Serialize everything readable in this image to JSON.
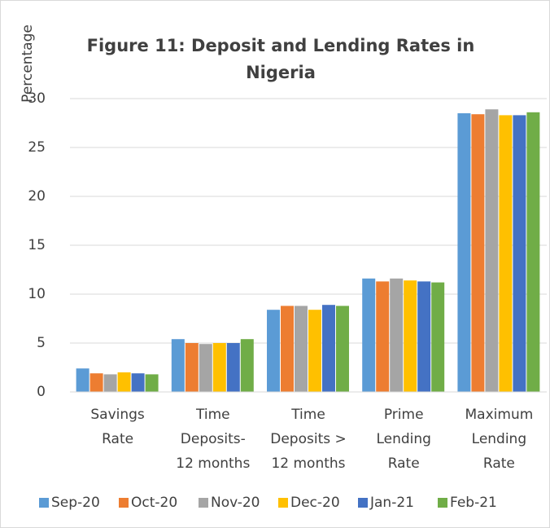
{
  "chart_data": {
    "type": "bar",
    "title": "Figure 11: Deposit and Lending Rates in\nNigeria",
    "y_label": "Percentage",
    "categories": [
      "Savings\nRate",
      "Time\nDeposits-\n12 months",
      "Time\nDeposits >\n12 months",
      "Prime\nLending\nRate",
      "Maximum\nLending\nRate"
    ],
    "series": [
      {
        "name": "Sep-20",
        "color": "#5b9bd5",
        "values": [
          2.4,
          5.4,
          8.4,
          11.6,
          28.5
        ]
      },
      {
        "name": "Oct-20",
        "color": "#ed7d31",
        "values": [
          1.9,
          5.0,
          8.8,
          11.3,
          28.4
        ]
      },
      {
        "name": "Nov-20",
        "color": "#a5a5a5",
        "values": [
          1.8,
          4.9,
          8.8,
          11.6,
          28.9
        ]
      },
      {
        "name": "Dec-20",
        "color": "#ffc000",
        "values": [
          2.0,
          5.0,
          8.4,
          11.4,
          28.3
        ]
      },
      {
        "name": "Jan-21",
        "color": "#4472c4",
        "values": [
          1.9,
          5.0,
          8.9,
          11.3,
          28.3
        ]
      },
      {
        "name": "Feb-21",
        "color": "#70ad47",
        "values": [
          1.8,
          5.4,
          8.8,
          11.2,
          28.6
        ]
      }
    ],
    "ylim": [
      0,
      30
    ],
    "yticks": [
      0,
      5,
      10,
      15,
      20,
      25,
      30
    ],
    "grid": true,
    "legend": "bottom"
  }
}
